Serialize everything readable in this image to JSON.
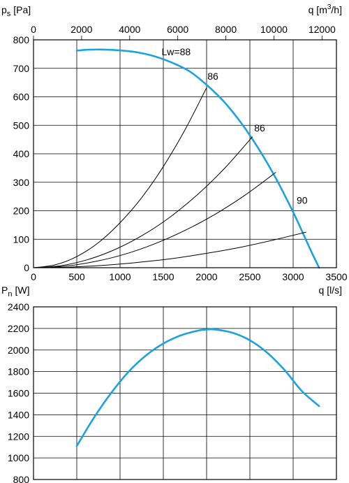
{
  "colors": {
    "curve": "#1aa3de",
    "grid": "#000000"
  },
  "chart_data": [
    {
      "type": "line",
      "ylabel_main": "p",
      "ylabel_sub": "s",
      "ylabel_unit": "[Pa]",
      "xlabel": "q [l/s]",
      "x2label_pre": "q [m",
      "x2label_sup": "3",
      "x2label_post": "/h]",
      "xlim": [
        0,
        3500
      ],
      "ylim": [
        0,
        800
      ],
      "x2lim": [
        0,
        12600
      ],
      "xticks": [
        0,
        500,
        1000,
        1500,
        2000,
        2500,
        3000,
        3500
      ],
      "yticks": [
        0,
        100,
        200,
        300,
        400,
        500,
        600,
        700,
        800
      ],
      "x2ticks": [
        0,
        2000,
        4000,
        6000,
        8000,
        10000,
        12000
      ],
      "grid": true,
      "series": [
        {
          "role": "fan",
          "x": [
            500,
            600,
            700,
            800,
            1000,
            1200,
            1400,
            1600,
            1800,
            2000,
            2200,
            2400,
            2600,
            2800,
            3000,
            3100,
            3200,
            3300
          ],
          "y": [
            762,
            765,
            766,
            766,
            763,
            756,
            742,
            720,
            690,
            642,
            583,
            508,
            418,
            314,
            195,
            130,
            63,
            0
          ]
        },
        {
          "role": "system",
          "x": [
            0,
            250,
            500,
            750,
            1000,
            1250,
            1500,
            1750,
            2000
          ],
          "y": [
            0,
            10,
            39,
            88,
            158,
            246,
            355,
            484,
            632
          ]
        },
        {
          "role": "system",
          "x": [
            0,
            317,
            633,
            950,
            1267,
            1583,
            1900,
            2217,
            2530
          ],
          "y": [
            0,
            7,
            29,
            65,
            115,
            179,
            258,
            352,
            460
          ]
        },
        {
          "role": "system",
          "x": [
            0,
            350,
            700,
            1050,
            1400,
            1750,
            2100,
            2450,
            2800
          ],
          "y": [
            0,
            5,
            21,
            47,
            84,
            131,
            188,
            256,
            335
          ]
        },
        {
          "role": "system",
          "x": [
            0,
            394,
            788,
            1181,
            1575,
            1969,
            2363,
            2756,
            3150
          ],
          "y": [
            0,
            2,
            8,
            18,
            31,
            49,
            70,
            96,
            125
          ]
        }
      ],
      "annotations": [
        {
          "text": "Lw=88",
          "x": 1480,
          "y": 746
        },
        {
          "text": "86",
          "x": 2010,
          "y": 660
        },
        {
          "text": "86",
          "x": 2550,
          "y": 478
        },
        {
          "text": "90",
          "x": 3040,
          "y": 225
        }
      ]
    },
    {
      "type": "line",
      "ylabel_main": "P",
      "ylabel_sub": "n",
      "ylabel_unit": "[W]",
      "xlim": [
        0,
        3500
      ],
      "ylim": [
        800,
        2400
      ],
      "yticks": [
        800,
        1000,
        1200,
        1400,
        1600,
        1800,
        2000,
        2200,
        2400
      ],
      "grid": true,
      "series": [
        {
          "role": "power",
          "x": [
            500,
            700,
            900,
            1100,
            1300,
            1500,
            1700,
            1900,
            2000,
            2100,
            2300,
            2500,
            2700,
            2900,
            3100,
            3300
          ],
          "y": [
            1110,
            1375,
            1605,
            1800,
            1950,
            2060,
            2135,
            2180,
            2190,
            2190,
            2160,
            2090,
            1975,
            1815,
            1620,
            1480
          ]
        }
      ]
    }
  ]
}
